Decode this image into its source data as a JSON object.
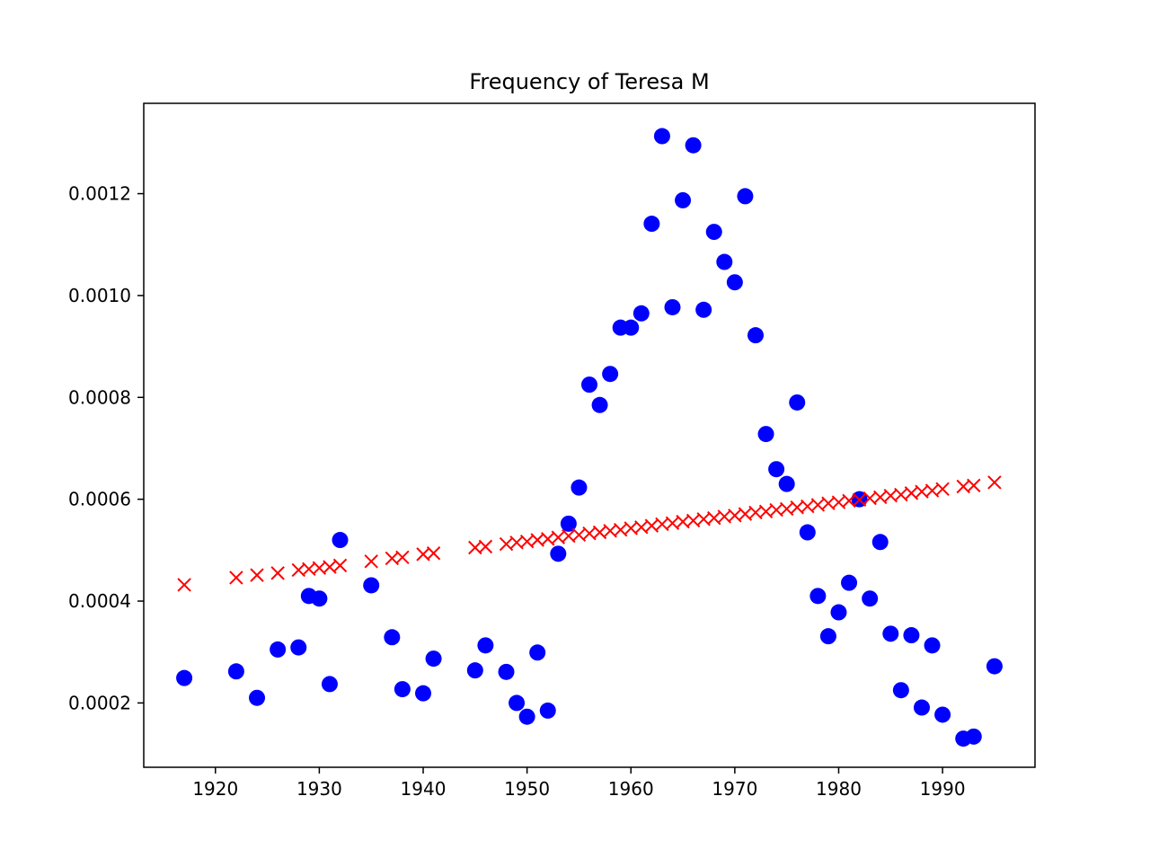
{
  "chart_data": {
    "type": "scatter",
    "title": "Frequency of Teresa M",
    "xlabel": "",
    "ylabel": "",
    "xlim": [
      1913.1,
      1998.9
    ],
    "ylim": [
      7.37e-05,
      0.0013774
    ],
    "grid": false,
    "x_ticks": [
      1920,
      1930,
      1940,
      1950,
      1960,
      1970,
      1980,
      1990
    ],
    "x_tick_labels": [
      "1920",
      "1930",
      "1940",
      "1950",
      "1960",
      "1970",
      "1980",
      "1990"
    ],
    "y_ticks": [
      0.0002,
      0.0004,
      0.0006,
      0.0008,
      0.001,
      0.0012
    ],
    "y_tick_labels": [
      "0.0002",
      "0.0004",
      "0.0006",
      "0.0008",
      "0.0010",
      "0.0012"
    ],
    "series": [
      {
        "marker": "circle",
        "color": "#0000ff",
        "points": [
          [
            1917,
            0.000249
          ],
          [
            1922,
            0.000262
          ],
          [
            1924,
            0.00021
          ],
          [
            1926,
            0.000305
          ],
          [
            1928,
            0.000309
          ],
          [
            1929,
            0.00041
          ],
          [
            1930,
            0.000405
          ],
          [
            1931,
            0.000237
          ],
          [
            1932,
            0.00052
          ],
          [
            1935,
            0.000431
          ],
          [
            1937,
            0.000329
          ],
          [
            1938,
            0.000227
          ],
          [
            1940,
            0.000219
          ],
          [
            1941,
            0.000287
          ],
          [
            1945,
            0.000264
          ],
          [
            1946,
            0.000313
          ],
          [
            1948,
            0.000261
          ],
          [
            1949,
            0.0002
          ],
          [
            1950,
            0.000173
          ],
          [
            1951,
            0.000299
          ],
          [
            1952,
            0.000185
          ],
          [
            1953,
            0.000493
          ],
          [
            1954,
            0.000552
          ],
          [
            1955,
            0.000623
          ],
          [
            1956,
            0.000825
          ],
          [
            1957,
            0.000785
          ],
          [
            1958,
            0.000846
          ],
          [
            1959,
            0.000937
          ],
          [
            1960,
            0.000937
          ],
          [
            1961,
            0.000965
          ],
          [
            1962,
            0.001141
          ],
          [
            1963,
            0.001313
          ],
          [
            1964,
            0.000977
          ],
          [
            1965,
            0.001187
          ],
          [
            1966,
            0.001295
          ],
          [
            1967,
            0.000972
          ],
          [
            1968,
            0.001125
          ],
          [
            1969,
            0.001066
          ],
          [
            1970,
            0.001026
          ],
          [
            1971,
            0.001195
          ],
          [
            1972,
            0.000922
          ],
          [
            1973,
            0.000728
          ],
          [
            1974,
            0.000659
          ],
          [
            1975,
            0.00063
          ],
          [
            1976,
            0.00079
          ],
          [
            1977,
            0.000535
          ],
          [
            1978,
            0.00041
          ],
          [
            1979,
            0.000331
          ],
          [
            1980,
            0.000378
          ],
          [
            1981,
            0.000436
          ],
          [
            1982,
            0.0006
          ],
          [
            1983,
            0.000405
          ],
          [
            1984,
            0.000516
          ],
          [
            1985,
            0.000336
          ],
          [
            1986,
            0.000225
          ],
          [
            1987,
            0.000333
          ],
          [
            1988,
            0.000191
          ],
          [
            1989,
            0.000313
          ],
          [
            1990,
            0.000177
          ],
          [
            1992,
            0.00013
          ],
          [
            1993,
            0.000134
          ],
          [
            1995,
            0.000272
          ]
        ]
      },
      {
        "marker": "x",
        "color": "#ff0000",
        "points": [
          [
            1917,
            0.000432
          ],
          [
            1922,
            0.000446
          ],
          [
            1924,
            0.000451
          ],
          [
            1926,
            0.000455
          ],
          [
            1928,
            0.000461
          ],
          [
            1929,
            0.000463
          ],
          [
            1930,
            0.000465
          ],
          [
            1931,
            0.000467
          ],
          [
            1932,
            0.00047
          ],
          [
            1935,
            0.000478
          ],
          [
            1937,
            0.000484
          ],
          [
            1938,
            0.000486
          ],
          [
            1940,
            0.000492
          ],
          [
            1941,
            0.000494
          ],
          [
            1945,
            0.000505
          ],
          [
            1946,
            0.000507
          ],
          [
            1948,
            0.000512
          ],
          [
            1949,
            0.000515
          ],
          [
            1950,
            0.000517
          ],
          [
            1951,
            0.00052
          ],
          [
            1952,
            0.000522
          ],
          [
            1953,
            0.000525
          ],
          [
            1954,
            0.000528
          ],
          [
            1955,
            0.00053
          ],
          [
            1956,
            0.000533
          ],
          [
            1957,
            0.000535
          ],
          [
            1958,
            0.000538
          ],
          [
            1959,
            0.00054
          ],
          [
            1960,
            0.000543
          ],
          [
            1961,
            0.000545
          ],
          [
            1962,
            0.000548
          ],
          [
            1963,
            0.000551
          ],
          [
            1964,
            0.000553
          ],
          [
            1965,
            0.000556
          ],
          [
            1966,
            0.000558
          ],
          [
            1967,
            0.000561
          ],
          [
            1968,
            0.000563
          ],
          [
            1969,
            0.000566
          ],
          [
            1970,
            0.000568
          ],
          [
            1971,
            0.000571
          ],
          [
            1972,
            0.000574
          ],
          [
            1973,
            0.000576
          ],
          [
            1974,
            0.000579
          ],
          [
            1975,
            0.000581
          ],
          [
            1976,
            0.000584
          ],
          [
            1977,
            0.000586
          ],
          [
            1978,
            0.000589
          ],
          [
            1979,
            0.000592
          ],
          [
            1980,
            0.000594
          ],
          [
            1981,
            0.000597
          ],
          [
            1982,
            0.000599
          ],
          [
            1983,
            0.000602
          ],
          [
            1984,
            0.000604
          ],
          [
            1985,
            0.000607
          ],
          [
            1986,
            0.000609
          ],
          [
            1987,
            0.000612
          ],
          [
            1988,
            0.000615
          ],
          [
            1989,
            0.000617
          ],
          [
            1990,
            0.00062
          ],
          [
            1992,
            0.000625
          ],
          [
            1993,
            0.000627
          ],
          [
            1995,
            0.000633
          ]
        ]
      }
    ]
  }
}
